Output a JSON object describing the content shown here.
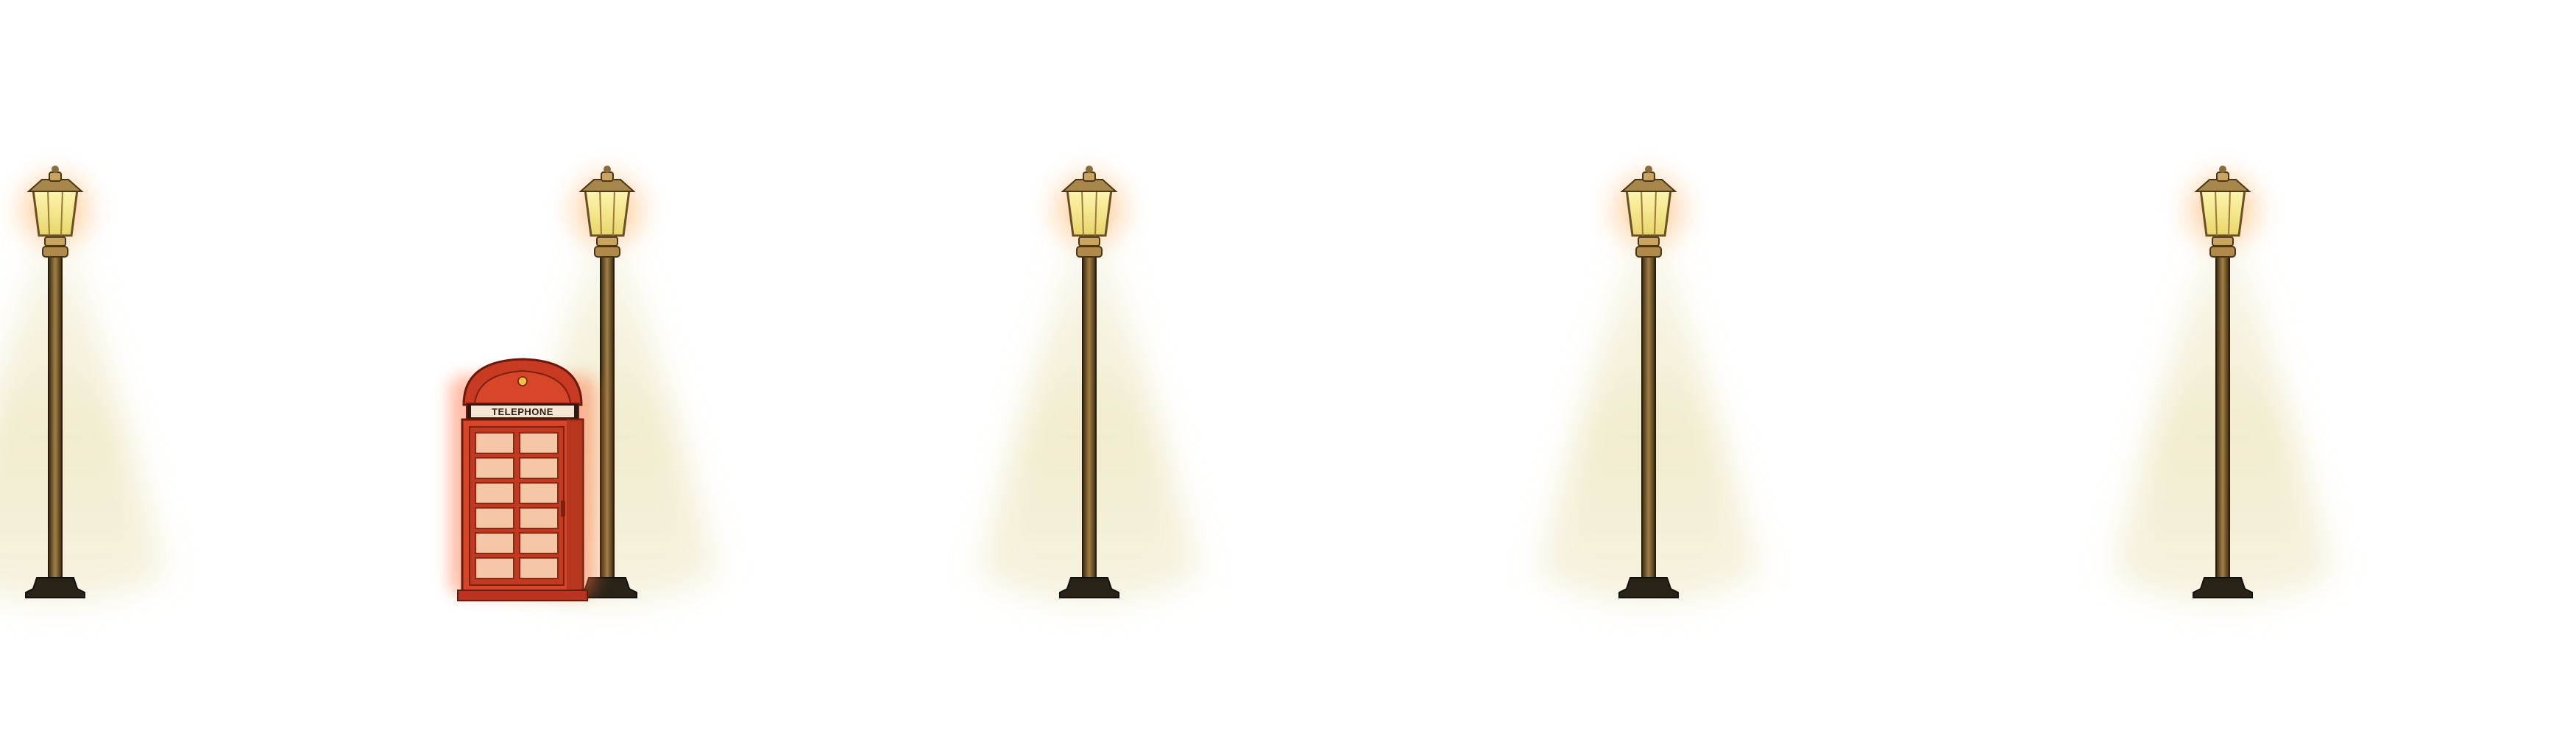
{
  "scene": {
    "colors": {
      "background": "#ffffff",
      "light_cone": "#e6dca6",
      "lamp_glow": "#ffb060",
      "lamp_glass": "#f4ec8a",
      "lamp_metal": "#8a6b3a",
      "lamp_post": "#5a4420",
      "lamp_base": "#2a2418",
      "booth_red": "#d8462a",
      "booth_dark": "#8f2614",
      "booth_window": "#f6c7a6"
    },
    "props": [
      {
        "name": "street-lamp",
        "icon": "street-lamp-icon"
      },
      {
        "name": "street-lamp",
        "icon": "street-lamp-icon"
      },
      {
        "name": "street-lamp",
        "icon": "street-lamp-icon"
      },
      {
        "name": "street-lamp",
        "icon": "street-lamp-icon"
      },
      {
        "name": "street-lamp",
        "icon": "street-lamp-icon"
      },
      {
        "name": "telephone-booth",
        "icon": "telephone-booth-icon"
      }
    ]
  },
  "booth": {
    "sign": "TELEPHONE"
  }
}
